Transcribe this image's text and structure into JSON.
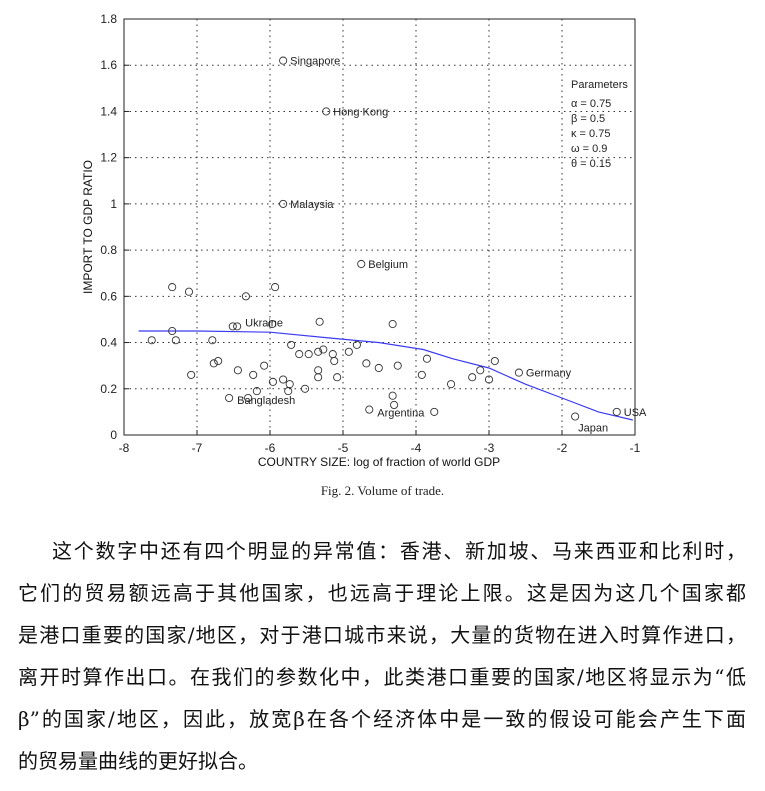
{
  "chart_data": {
    "type": "scatter",
    "title": "",
    "xlabel": "COUNTRY SIZE:  log of fraction of world GDP",
    "ylabel": "IMPORT TO GDP RATIO",
    "xlim": [
      -8,
      -1
    ],
    "ylim": [
      0,
      1.8
    ],
    "xticks": [
      "-8",
      "-7",
      "-6",
      "-5",
      "-4",
      "-3",
      "-2",
      "-1"
    ],
    "yticks": [
      "0",
      "0.2",
      "0.4",
      "0.6",
      "0.8",
      "1",
      "1.2",
      "1.4",
      "1.6",
      "1.8"
    ],
    "grid": "dotted",
    "curve_color": "#3b3bf0",
    "parameters": {
      "title": "Parameters",
      "lines": [
        "α = 0.75",
        "β = 0.5",
        "κ = 0.75",
        "ω = 0.9",
        "θ = 0.15"
      ]
    },
    "labeled_points": [
      {
        "label": "Singapore",
        "x": -5.82,
        "y": 1.62
      },
      {
        "label": "Hong Kong",
        "x": -5.23,
        "y": 1.4
      },
      {
        "label": "Malaysia",
        "x": -5.82,
        "y": 1.0
      },
      {
        "label": "Belgium",
        "x": -4.75,
        "y": 0.74
      },
      {
        "label": "Ukraine",
        "x": -6.45,
        "y": 0.47
      },
      {
        "label": "Bangladesh",
        "x": -6.56,
        "y": 0.16
      },
      {
        "label": "Argentina",
        "x": -4.64,
        "y": 0.11
      },
      {
        "label": "Germany",
        "x": -2.59,
        "y": 0.27
      },
      {
        "label": "Japan",
        "x": -1.82,
        "y": 0.08
      },
      {
        "label": "USA",
        "x": -1.25,
        "y": 0.1
      }
    ],
    "points": [
      [
        -7.34,
        0.64
      ],
      [
        -7.11,
        0.62
      ],
      [
        -6.33,
        0.6
      ],
      [
        -5.93,
        0.64
      ],
      [
        -6.51,
        0.47
      ],
      [
        -5.97,
        0.48
      ],
      [
        -5.32,
        0.49
      ],
      [
        -4.32,
        0.48
      ],
      [
        -7.34,
        0.45
      ],
      [
        -7.62,
        0.41
      ],
      [
        -7.29,
        0.41
      ],
      [
        -6.79,
        0.41
      ],
      [
        -5.71,
        0.39
      ],
      [
        -4.81,
        0.39
      ],
      [
        -4.92,
        0.36
      ],
      [
        -5.6,
        0.35
      ],
      [
        -5.47,
        0.35
      ],
      [
        -5.34,
        0.36
      ],
      [
        -5.27,
        0.37
      ],
      [
        -5.14,
        0.35
      ],
      [
        -5.12,
        0.32
      ],
      [
        -6.77,
        0.31
      ],
      [
        -6.71,
        0.32
      ],
      [
        -4.68,
        0.31
      ],
      [
        -4.51,
        0.29
      ],
      [
        -4.25,
        0.3
      ],
      [
        -7.08,
        0.26
      ],
      [
        -6.44,
        0.28
      ],
      [
        -6.23,
        0.26
      ],
      [
        -6.08,
        0.3
      ],
      [
        -5.34,
        0.28
      ],
      [
        -5.34,
        0.25
      ],
      [
        -5.08,
        0.25
      ],
      [
        -5.82,
        0.24
      ],
      [
        -5.96,
        0.23
      ],
      [
        -5.73,
        0.22
      ],
      [
        -5.75,
        0.19
      ],
      [
        -5.52,
        0.2
      ],
      [
        -6.18,
        0.19
      ],
      [
        -6.3,
        0.16
      ],
      [
        -4.32,
        0.17
      ],
      [
        -4.3,
        0.13
      ],
      [
        -3.85,
        0.33
      ],
      [
        -3.92,
        0.26
      ],
      [
        -3.52,
        0.22
      ],
      [
        -3.75,
        0.1
      ],
      [
        -3.23,
        0.25
      ],
      [
        -3.12,
        0.28
      ],
      [
        -3.0,
        0.24
      ],
      [
        -2.92,
        0.32
      ]
    ],
    "curve": [
      [
        -7.8,
        0.45
      ],
      [
        -7,
        0.45
      ],
      [
        -6,
        0.445
      ],
      [
        -5.2,
        0.42
      ],
      [
        -4.5,
        0.4
      ],
      [
        -3.9,
        0.37
      ],
      [
        -3.5,
        0.33
      ],
      [
        -3,
        0.29
      ],
      [
        -2.5,
        0.22
      ],
      [
        -2,
        0.16
      ],
      [
        -1.5,
        0.1
      ],
      [
        -1.03,
        0.065
      ]
    ]
  },
  "caption": "Fig. 2. Volume of trade.",
  "paragraph": [
    "这个数字中还有四个明显的异常值：香港、新加坡、马来西亚和比利时，",
    "它们的贸易额远高于其他国家，也远高于理论上限。这是因为这几个国家都",
    "是港口重要的国家/地区，对于港口城市来说，大量的货物在进入时算作进口，",
    "离开时算作出口。在我们的参数化中，此类港口重要的国家/地区将显示为“低",
    "β”的国家/地区，因此，放宽β在各个经济体中是一致的假设可能会产生下面",
    "的贸易量曲线的更好拟合。"
  ]
}
